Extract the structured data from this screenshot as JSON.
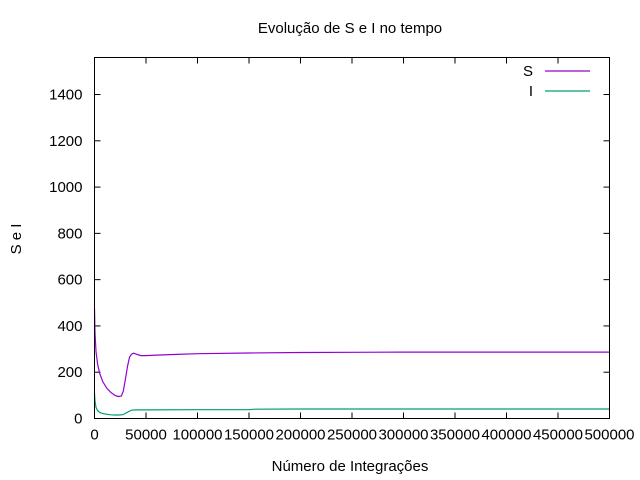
{
  "chart_data": {
    "type": "line",
    "title": "Evolução de S e I no tempo",
    "xlabel": "Número de Integrações",
    "ylabel": "S e I",
    "xlim": [
      0,
      500000
    ],
    "ylim": [
      0,
      1560
    ],
    "x_ticks": [
      0,
      50000,
      100000,
      150000,
      200000,
      250000,
      300000,
      350000,
      400000,
      450000,
      500000
    ],
    "y_ticks": [
      0,
      200,
      400,
      600,
      800,
      1000,
      1200,
      1400
    ],
    "grid": false,
    "legend_position": "top-right",
    "series": [
      {
        "name": "S",
        "color": "#9400d3",
        "x": [
          0,
          500,
          1500,
          3000,
          5000,
          8000,
          12000,
          16000,
          20000,
          23000,
          26000,
          28000,
          30000,
          32000,
          34000,
          36000,
          38000,
          40000,
          45000,
          50000,
          60000,
          80000,
          100000,
          150000,
          200000,
          250000,
          300000,
          350000,
          400000,
          450000,
          500000
        ],
        "y": [
          475,
          370,
          290,
          235,
          195,
          160,
          130,
          112,
          100,
          95,
          97,
          118,
          170,
          225,
          265,
          278,
          282,
          279,
          272,
          272,
          274,
          277,
          280,
          283,
          285,
          286,
          287,
          287,
          287,
          287,
          287
        ]
      },
      {
        "name": "I",
        "color": "#009e73",
        "x": [
          0,
          500,
          1500,
          3000,
          5000,
          8000,
          12000,
          16000,
          20000,
          24000,
          28000,
          30000,
          33000,
          36000,
          40000,
          50000,
          100000,
          150000,
          155000,
          200000,
          250000,
          300000,
          400000,
          500000
        ],
        "y": [
          110,
          75,
          48,
          34,
          26,
          21,
          18,
          16,
          15,
          15,
          17,
          22,
          30,
          36,
          37,
          37,
          38,
          38,
          40,
          41,
          41,
          41,
          41,
          41
        ]
      }
    ]
  }
}
